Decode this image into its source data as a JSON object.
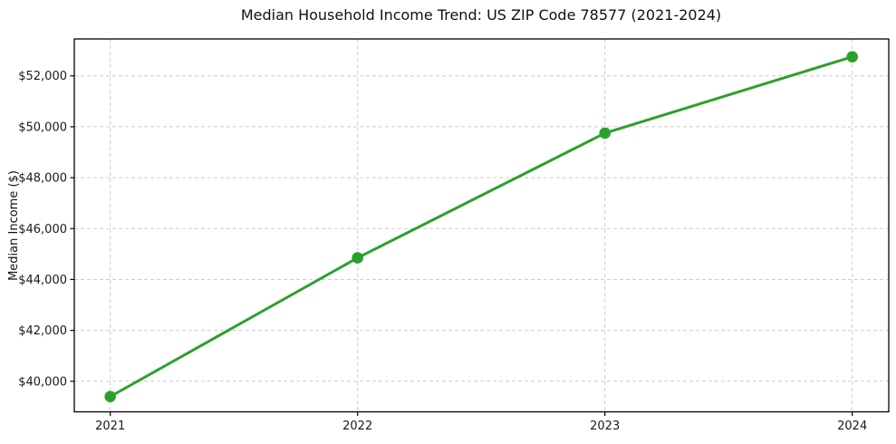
{
  "chart_data": {
    "type": "line",
    "title": "Median Household Income Trend: US ZIP Code 78577 (2021-2024)",
    "xlabel": "",
    "ylabel": "Median Income ($)",
    "categories": [
      "2021",
      "2022",
      "2023",
      "2024"
    ],
    "series": [
      {
        "name": "Median Household Income",
        "values": [
          39400,
          44850,
          49750,
          52750
        ],
        "color": "#2ca02c",
        "marker": "circle",
        "marker_radius": 6.3,
        "line_width": 3
      }
    ],
    "y_ticks": [
      40000,
      42000,
      44000,
      46000,
      48000,
      50000,
      52000
    ],
    "y_tick_labels": [
      "$40,000",
      "$42,000",
      "$44,000",
      "$46,000",
      "$48,000",
      "$50,000",
      "$52,000"
    ],
    "ylim": [
      38800,
      53450
    ],
    "grid": true,
    "grid_style": "dashed",
    "grid_color": "#cccccc",
    "legend_position": "none",
    "background": "#ffffff"
  }
}
